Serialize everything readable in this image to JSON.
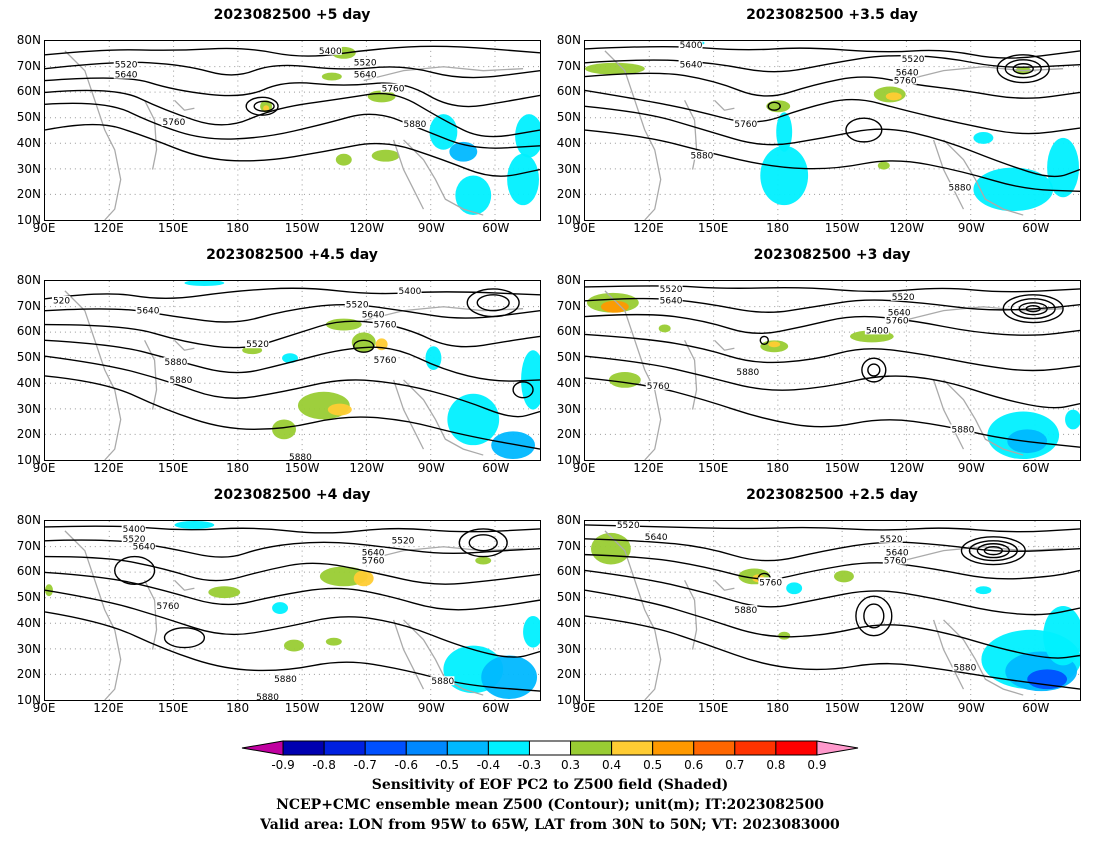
{
  "panels": [
    {
      "title": "2023082500  +5 day"
    },
    {
      "title": "2023082500  +3.5 day"
    },
    {
      "title": "2023082500  +4.5 day"
    },
    {
      "title": "2023082500  +3 day"
    },
    {
      "title": "2023082500  +4 day"
    },
    {
      "title": "2023082500  +2.5 day"
    }
  ],
  "lat_labels": [
    "80N",
    "70N",
    "60N",
    "50N",
    "40N",
    "30N",
    "20N",
    "10N"
  ],
  "lon_labels": [
    "90E",
    "120E",
    "150E",
    "180",
    "150W",
    "120W",
    "90W",
    "60W"
  ],
  "contour_labels": {
    "p0": [
      "5400",
      "5520",
      "5640",
      "5520",
      "5640",
      "5760",
      "5760",
      "5880"
    ],
    "p1": [
      "5400",
      "5640",
      "5520",
      "5640",
      "5760",
      "5760",
      "5880",
      "5880"
    ],
    "p2": [
      "520",
      "5640",
      "5400",
      "5520",
      "5640",
      "5760",
      "5880",
      "5520",
      "5760",
      "5880",
      "5880"
    ],
    "p3": [
      "5520",
      "5640",
      "5520",
      "5640",
      "5760",
      "5400",
      "5760",
      "5880",
      "5880"
    ],
    "p4": [
      "5400",
      "5520",
      "5640",
      "5520",
      "5640",
      "5760",
      "5760",
      "5880",
      "5880",
      "5880"
    ],
    "p5": [
      "5520",
      "5640",
      "5520",
      "5640",
      "5760",
      "5760",
      "5880",
      "5880"
    ]
  },
  "colorbar": {
    "colors": [
      "#c000a0",
      "#0000b0",
      "#0020e0",
      "#0050ff",
      "#0088ff",
      "#00b8ff",
      "#00f0ff",
      "#ffffff",
      "#99cc33",
      "#ffcc33",
      "#ff9900",
      "#ff6600",
      "#ff3300",
      "#ff0000",
      "#ff99cc"
    ],
    "tick_labels": [
      "-0.9",
      "-0.8",
      "-0.7",
      "-0.6",
      "-0.5",
      "-0.4",
      "-0.3",
      "0.3",
      "0.4",
      "0.5",
      "0.6",
      "0.7",
      "0.8",
      "0.9"
    ]
  },
  "footer": {
    "line1": "Sensitivity of EOF PC2 to Z500 field (Shaded)",
    "line2": "NCEP+CMC ensemble mean Z500 (Contour); unit(m); IT:2023082500",
    "line3": "Valid area: LON from 95W to 65W, LAT from 30N to 50N; VT: 2023083000"
  }
}
